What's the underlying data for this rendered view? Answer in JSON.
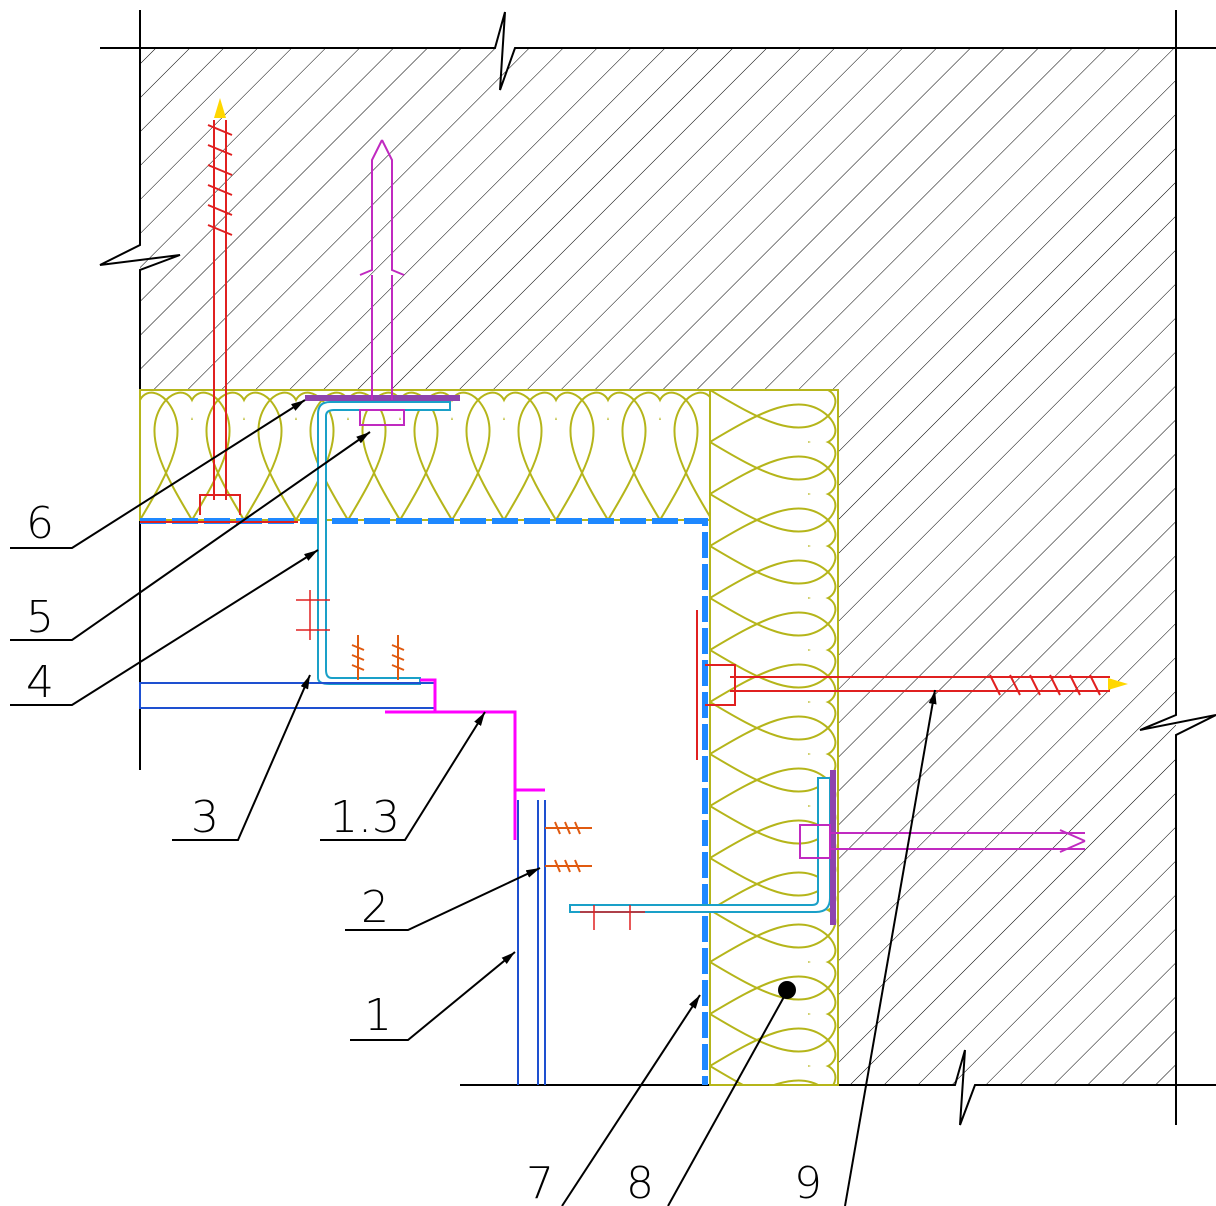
{
  "labels": [
    "6",
    "5",
    "4",
    "3",
    "1.3",
    "2",
    "1",
    "7",
    "8",
    "9"
  ]
}
